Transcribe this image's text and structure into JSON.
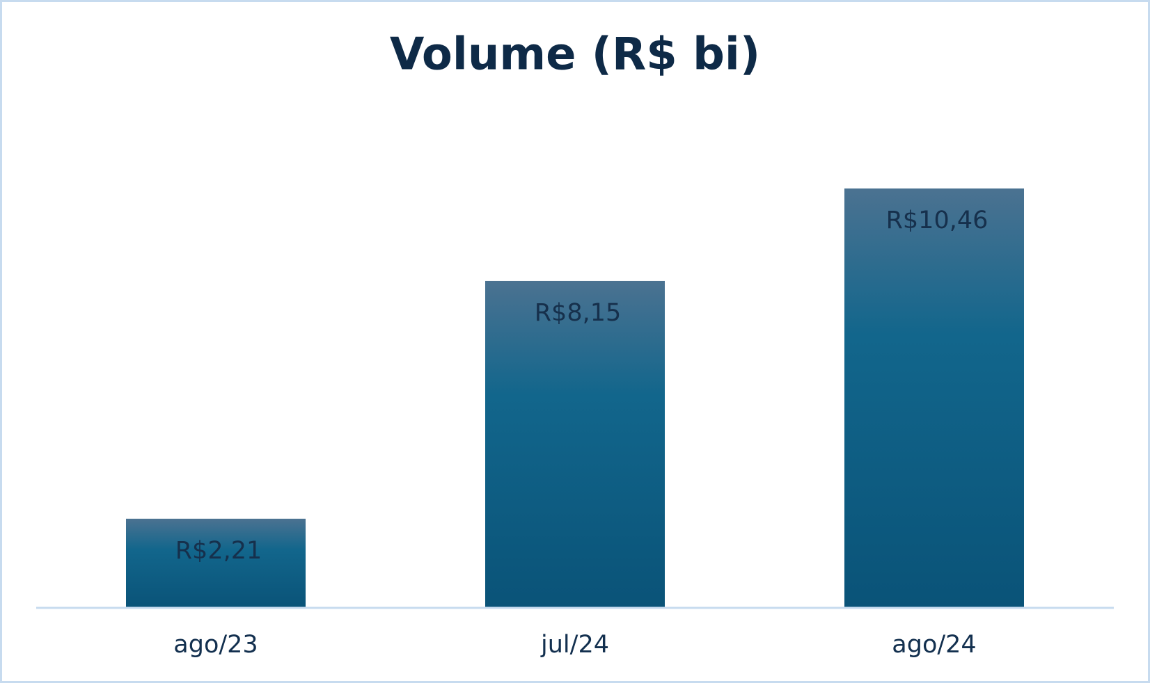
{
  "chart_data": {
    "type": "bar",
    "title": "Volume (R$ bi)",
    "categories": [
      "ago/23",
      "jul/24",
      "ago/24"
    ],
    "values": [
      2.21,
      8.15,
      10.46
    ],
    "value_labels": [
      "R$2,21",
      "R$8,15",
      "R$10,46"
    ],
    "color": "#0e5f85"
  }
}
